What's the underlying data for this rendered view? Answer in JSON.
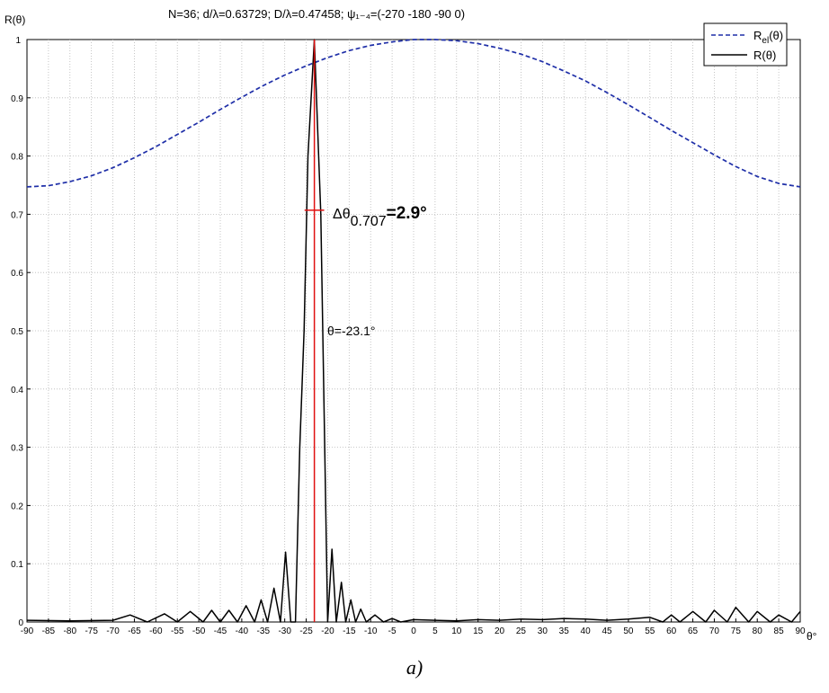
{
  "title": "N=36; d/λ=0.63729; D/λ=0.47458; ψ₁₋₄=(-270 -180  -90    0)",
  "caption": "a)",
  "annotations": {
    "width_label": "Δθ",
    "width_sub": "0.707",
    "width_value": "=2.9°",
    "peak_label": "θ=-23.1°"
  },
  "colors": {
    "element_pattern": "#1f2fa8",
    "array_pattern": "#000000",
    "markers": "#e01010",
    "grid": "#b8b8b8"
  },
  "chart_data": {
    "type": "line",
    "title": "N=36; d/λ=0.63729; D/λ=0.47458; ψ₁₋₄=(-270 -180  -90    0)",
    "xlabel": "θ°",
    "ylabel": "R(θ)",
    "xlim": [
      -90,
      90
    ],
    "ylim": [
      0,
      1
    ],
    "grid": true,
    "legend_position": "top-right",
    "x_ticks": [
      -90,
      -85,
      -80,
      -75,
      -70,
      -65,
      -60,
      -55,
      -50,
      -45,
      -40,
      -35,
      -30,
      -25,
      -20,
      -15,
      -10,
      -5,
      0,
      5,
      10,
      15,
      20,
      25,
      30,
      35,
      40,
      45,
      50,
      55,
      60,
      65,
      70,
      75,
      80,
      85,
      90
    ],
    "y_ticks": [
      0,
      0.1,
      0.2,
      0.3,
      0.4,
      0.5,
      0.6,
      0.7,
      0.8,
      0.9,
      1
    ],
    "y_tick_labels": [
      "0",
      "0.1",
      "0.2",
      "0.3",
      "0.4",
      "0.5",
      "0.6",
      "0.7",
      "0.8",
      "0.9",
      "1"
    ],
    "series": [
      {
        "name": "Rel(θ)",
        "style": "dashed",
        "x": [
          -90,
          -85,
          -80,
          -75,
          -70,
          -65,
          -60,
          -55,
          -50,
          -45,
          -40,
          -35,
          -30,
          -25,
          -20,
          -15,
          -10,
          -5,
          0,
          5,
          10,
          15,
          20,
          25,
          30,
          35,
          40,
          45,
          50,
          55,
          60,
          65,
          70,
          75,
          80,
          85,
          90
        ],
        "y": [
          0.747,
          0.749,
          0.756,
          0.766,
          0.78,
          0.797,
          0.816,
          0.837,
          0.858,
          0.88,
          0.901,
          0.921,
          0.939,
          0.955,
          0.969,
          0.981,
          0.99,
          0.996,
          1.0,
          1.0,
          0.998,
          0.993,
          0.985,
          0.975,
          0.962,
          0.946,
          0.929,
          0.909,
          0.888,
          0.866,
          0.844,
          0.823,
          0.802,
          0.782,
          0.765,
          0.753,
          0.747
        ]
      },
      {
        "name": "R(θ)",
        "style": "solid",
        "x": [
          -90,
          -80,
          -70,
          -66,
          -62,
          -58,
          -55,
          -52,
          -49,
          -47,
          -45,
          -43,
          -41,
          -39,
          -37,
          -35.5,
          -34,
          -32.5,
          -31,
          -29.8,
          -28.6,
          -27.5,
          -26.5,
          -25.5,
          -24.6,
          -23.1,
          -21.6,
          -20.8,
          -20,
          -19,
          -18,
          -16.8,
          -15.8,
          -14.6,
          -13.5,
          -12.3,
          -11,
          -9,
          -7,
          -5,
          -3,
          0,
          5,
          10,
          15,
          20,
          25,
          30,
          35,
          40,
          45,
          50,
          55,
          58,
          60,
          62,
          65,
          68,
          70,
          73,
          75,
          78,
          80,
          83,
          85,
          88,
          90
        ],
        "y": [
          0.003,
          0.002,
          0.003,
          0.012,
          0.0,
          0.014,
          0.0,
          0.018,
          0.0,
          0.02,
          0.0,
          0.02,
          0.0,
          0.028,
          0.0,
          0.038,
          0.0,
          0.058,
          0.0,
          0.12,
          0.0,
          0.0,
          0.3,
          0.5,
          0.8,
          1.0,
          0.7,
          0.35,
          0.0,
          0.125,
          0.0,
          0.068,
          0.0,
          0.038,
          0.0,
          0.022,
          0.0,
          0.012,
          0.0,
          0.006,
          0.0,
          0.004,
          0.003,
          0.002,
          0.004,
          0.003,
          0.005,
          0.004,
          0.006,
          0.005,
          0.003,
          0.005,
          0.008,
          0.0,
          0.012,
          0.0,
          0.018,
          0.0,
          0.02,
          0.0,
          0.025,
          0.0,
          0.018,
          0.0,
          0.012,
          0.0,
          0.018
        ]
      }
    ],
    "markers": {
      "peak_theta": -23.1,
      "half_power_level": 0.707,
      "beamwidth_deg": 2.9
    }
  }
}
